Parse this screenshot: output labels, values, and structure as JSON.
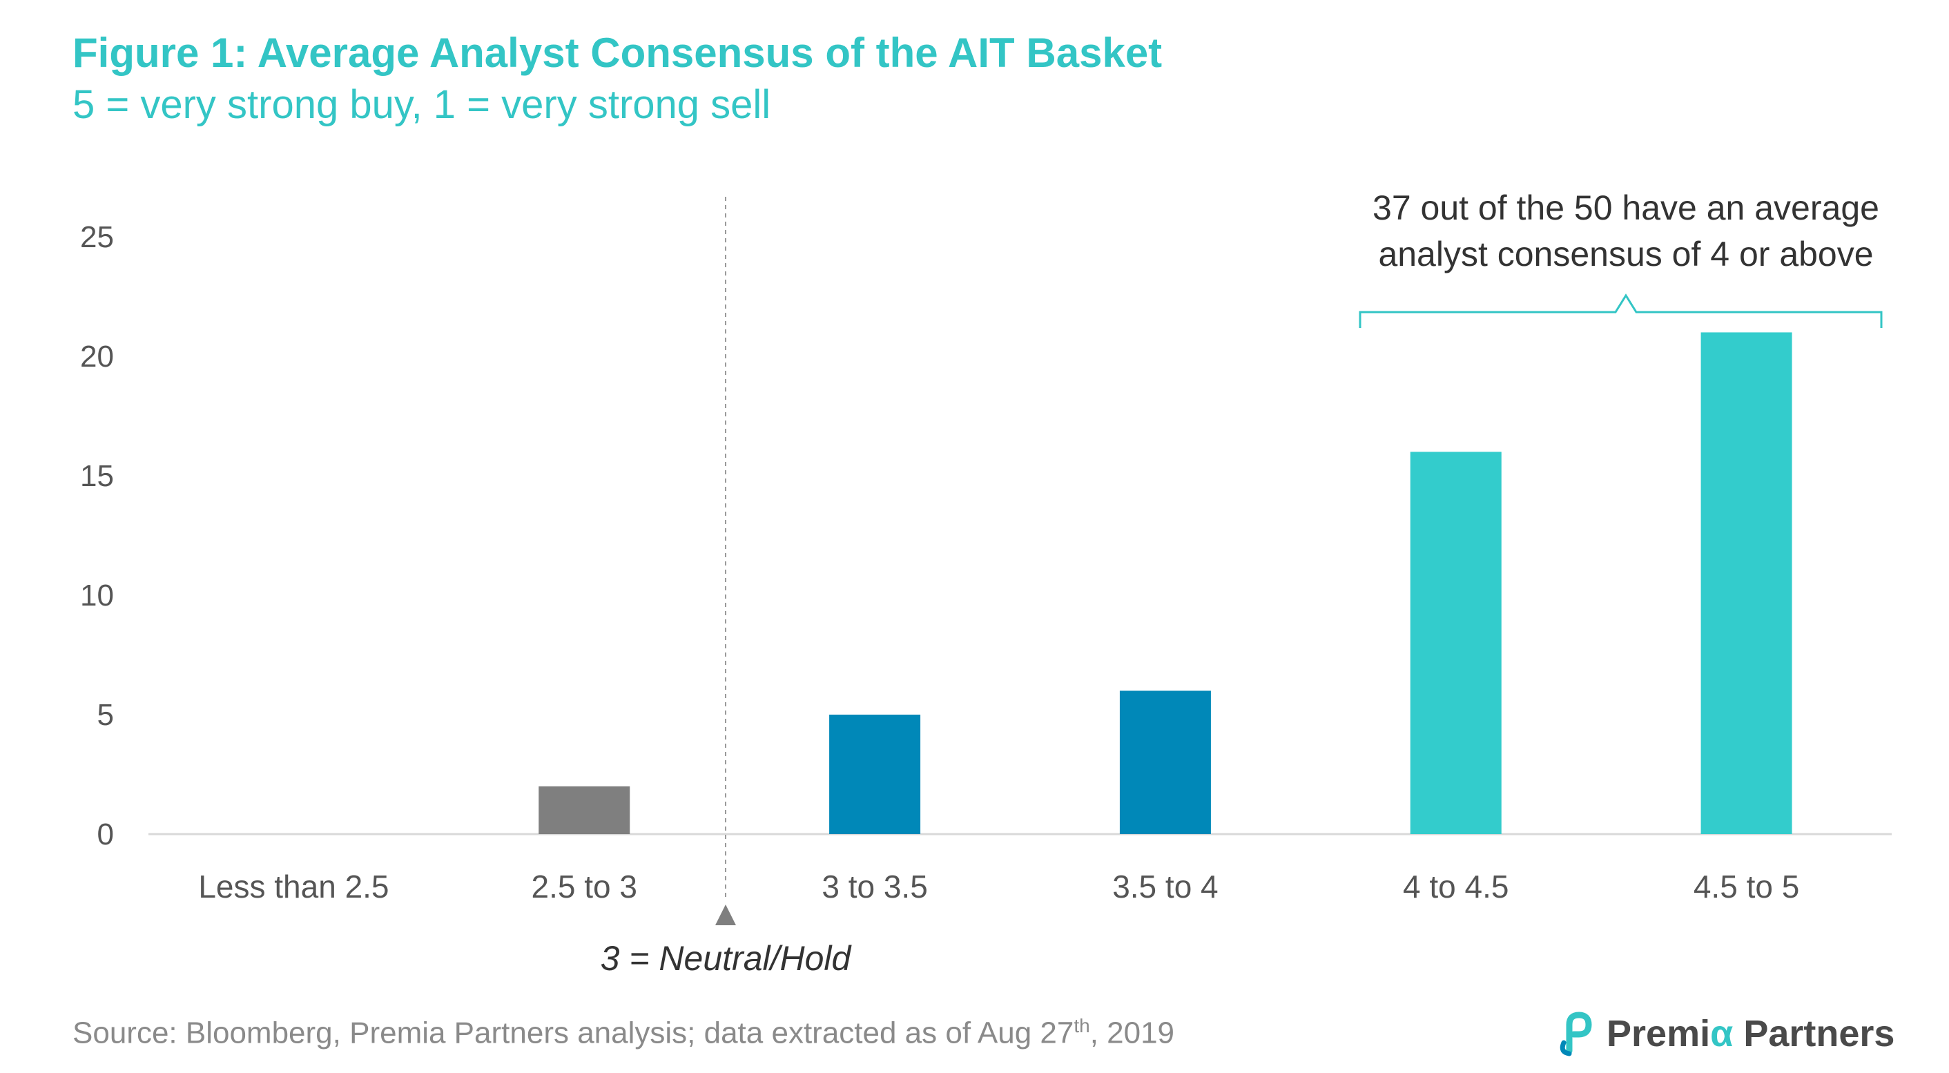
{
  "title": "Figure 1: Average Analyst Consensus of the AIT Basket",
  "subtitle": "5 = very strong buy, 1 = very strong sell",
  "chart_data": {
    "type": "bar",
    "categories": [
      "Less than 2.5",
      "2.5 to 3",
      "3 to 3.5",
      "3.5 to 4",
      "4 to 4.5",
      "4.5 to 5"
    ],
    "values": [
      0,
      2,
      5,
      6,
      16,
      21
    ],
    "bar_colors": [
      "#7f7f7f",
      "#7f7f7f",
      "#0088b8",
      "#0088b8",
      "#33cccc",
      "#33cccc"
    ],
    "ylim": [
      0,
      25
    ],
    "yticks": [
      0,
      5,
      10,
      15,
      20,
      25
    ],
    "xlabel": "",
    "ylabel": "",
    "grid": false,
    "annotations": {
      "bracket_text_line1": "37 out of the 50 have an average",
      "bracket_text_line2": "analyst consensus of 4 or above",
      "neutral_label": "3 = Neutral/Hold"
    }
  },
  "source": {
    "prefix": "Source: Bloomberg, Premia Partners analysis; data extracted as of Aug 27",
    "superscript": "th",
    "suffix": ", 2019"
  },
  "logo": {
    "part1": "Premi",
    "alpha": "α",
    "part2": "Partners"
  },
  "colors": {
    "accent": "#33c5c5",
    "gray_bar": "#7f7f7f",
    "blue_bar": "#0088b8",
    "teal_bar": "#33cccc"
  }
}
